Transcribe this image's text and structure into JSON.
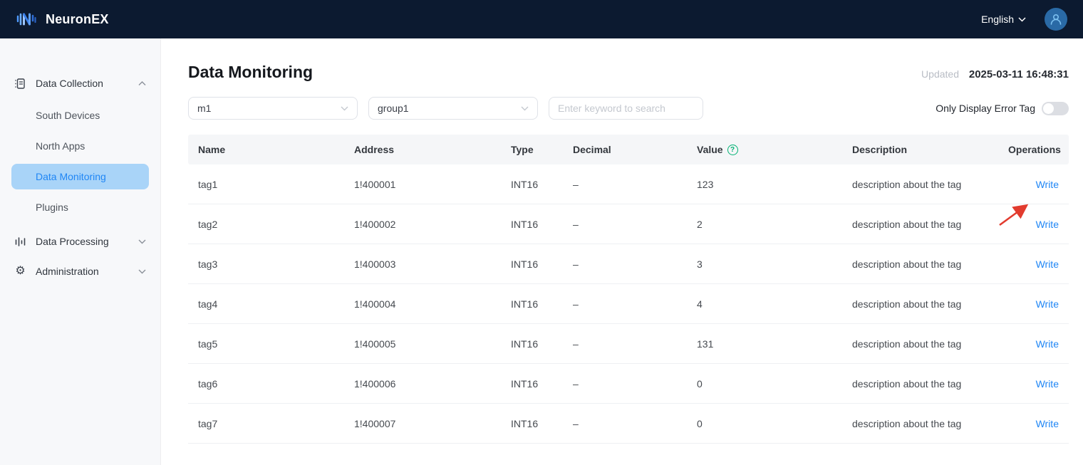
{
  "navbar": {
    "brand": "NeuronEX",
    "language": "English"
  },
  "sidebar": {
    "collection": {
      "label": "Data Collection",
      "items": [
        {
          "label": "South Devices"
        },
        {
          "label": "North Apps"
        },
        {
          "label": "Data Monitoring"
        },
        {
          "label": "Plugins"
        }
      ]
    },
    "processing": {
      "label": "Data Processing"
    },
    "administration": {
      "label": "Administration"
    }
  },
  "page": {
    "title": "Data Monitoring",
    "updated_label": "Updated",
    "updated_value": "2025-03-11 16:48:31"
  },
  "filters": {
    "node": "m1",
    "group": "group1",
    "search_placeholder": "Enter keyword to search",
    "error_toggle_label": "Only Display Error Tag",
    "toggle_state": "off"
  },
  "table": {
    "columns": [
      "Name",
      "Address",
      "Type",
      "Decimal",
      "Value",
      "Description",
      "Operations"
    ],
    "write_label": "Write",
    "rows": [
      {
        "name": "tag1",
        "address": "1!400001",
        "type": "INT16",
        "decimal": "–",
        "value": "123",
        "description": "description about the tag"
      },
      {
        "name": "tag2",
        "address": "1!400002",
        "type": "INT16",
        "decimal": "–",
        "value": "2",
        "description": "description about the tag"
      },
      {
        "name": "tag3",
        "address": "1!400003",
        "type": "INT16",
        "decimal": "–",
        "value": "3",
        "description": "description about the tag"
      },
      {
        "name": "tag4",
        "address": "1!400004",
        "type": "INT16",
        "decimal": "–",
        "value": "4",
        "description": "description about the tag"
      },
      {
        "name": "tag5",
        "address": "1!400005",
        "type": "INT16",
        "decimal": "–",
        "value": "131",
        "description": "description about the tag"
      },
      {
        "name": "tag6",
        "address": "1!400006",
        "type": "INT16",
        "decimal": "–",
        "value": "0",
        "description": "description about the tag"
      },
      {
        "name": "tag7",
        "address": "1!400007",
        "type": "INT16",
        "decimal": "–",
        "value": "0",
        "description": "description about the tag"
      }
    ]
  },
  "colors": {
    "navbar_bg": "#0c1a30",
    "accent_blue": "#1f86f5",
    "selected_item_bg": "#a9d4f8",
    "help_icon_green": "#00b173",
    "annotation_arrow_red": "#e23b2e"
  }
}
